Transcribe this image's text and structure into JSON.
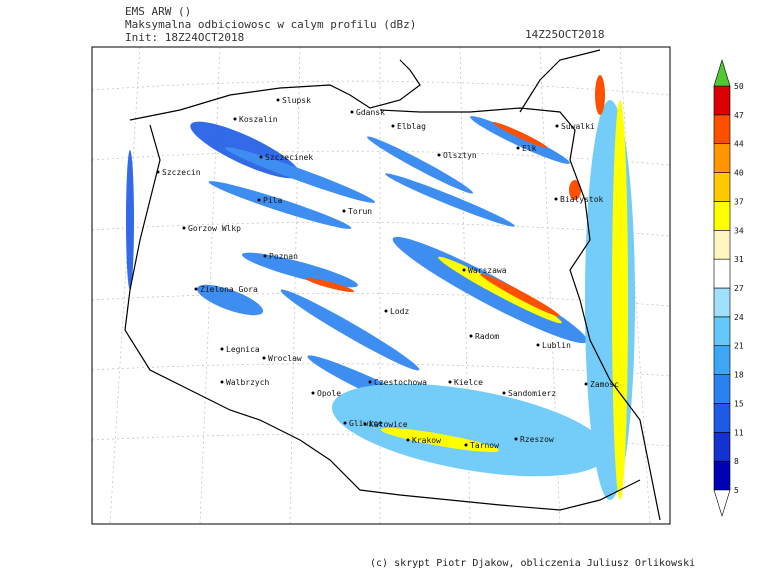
{
  "header": {
    "model": "EMS ARW ()",
    "field": "Maksymalna odbiciowosc w calym profilu (dBz)",
    "init": "Init: 18Z24OCT2018",
    "valid": "14Z25OCT2018"
  },
  "cities": [
    "Slupsk",
    "Koszalin",
    "Gdansk",
    "Elblag",
    "Olsztyn",
    "Elk",
    "Suwalki",
    "Szczecinek",
    "Szczecin",
    "Pila",
    "Torun",
    "Bialystok",
    "Gorzow Wlkp",
    "Poznan",
    "Warszawa",
    "Zielona Gora",
    "Lodz",
    "Radom",
    "Lublin",
    "Legnica",
    "Wroclaw",
    "Walbrzych",
    "Opole",
    "Czestochowa",
    "Kielce",
    "Sandomierz",
    "Zamosc",
    "Gliwice",
    "Katowice",
    "Krakow",
    "Tarnow",
    "Rzeszow"
  ],
  "legend": {
    "ticks": [
      5,
      8,
      11,
      15,
      18,
      21,
      24,
      27,
      31,
      34,
      37,
      40,
      44,
      47,
      50
    ],
    "colors": [
      "#0000b4",
      "#1432d2",
      "#1e5ae6",
      "#2a82f0",
      "#3ca8f5",
      "#64c8f8",
      "#a0e0fa",
      "#ffffff",
      "#fff5c0",
      "#ffff00",
      "#ffc800",
      "#ff9600",
      "#ff5000",
      "#dc0000"
    ],
    "over_color": "#50c832",
    "under_color": "#ffffff"
  },
  "footer": "(c) skrypt Piotr Djakow, obliczenia Juliusz Orlikowski"
}
